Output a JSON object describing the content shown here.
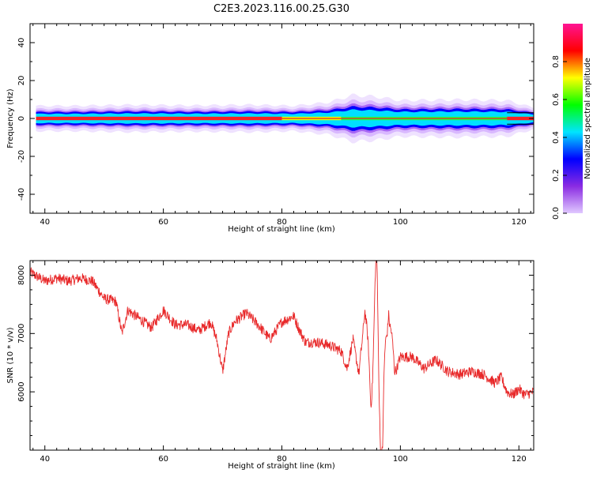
{
  "title": "C2E3.2023.116.00.25.G30",
  "colors": {
    "snr_line": "#e8292a",
    "spectrum_center": "#e8282a",
    "colormap": [
      "#e0c8ff",
      "#8a2be2",
      "#0000ff",
      "#00e5ff",
      "#00ff00",
      "#ffff00",
      "#ff0000",
      "#ff1493"
    ]
  },
  "chart_data": [
    {
      "name": "spectrogram",
      "type": "heatmap",
      "xlabel": "Height of straight line (km)",
      "ylabel": "Frequency (Hz)",
      "xlim": [
        37.5,
        122.5
      ],
      "ylim": [
        -50,
        50
      ],
      "xticks": [
        40,
        60,
        80,
        100,
        120
      ],
      "yticks": [
        40,
        20,
        0,
        -20,
        -40
      ],
      "colorbar": {
        "label": "Normalized spectral amplitude",
        "range": [
          0,
          1
        ],
        "ticks": [
          "0.0",
          "0.2",
          "0.4",
          "0.6",
          "0.8"
        ],
        "colormap": "gist_rainbow"
      },
      "ridge": {
        "center_frequency_hz": 0,
        "halfwidth_hz": [
          [
            38.5,
            3.5
          ],
          [
            45,
            3.5
          ],
          [
            55,
            3.8
          ],
          [
            65,
            3.6
          ],
          [
            75,
            3.8
          ],
          [
            82,
            3.5
          ],
          [
            88,
            4.5
          ],
          [
            92,
            6.5
          ],
          [
            96,
            6.0
          ],
          [
            100,
            5.0
          ],
          [
            110,
            5.2
          ],
          [
            118,
            5.0
          ],
          [
            122.5,
            3.0
          ]
        ],
        "core_color_segments": [
          [
            38.5,
            80,
            "red"
          ],
          [
            80,
            90,
            "yellow"
          ],
          [
            90,
            100,
            "green"
          ],
          [
            100,
            118,
            "green"
          ],
          [
            118,
            122.5,
            "red"
          ]
        ]
      }
    },
    {
      "name": "snr",
      "type": "line",
      "xlabel": "Height of straight line (km)",
      "ylabel": "SNR (10 * v/v)",
      "xlim": [
        37.5,
        122.5
      ],
      "ylim": [
        5000,
        8250
      ],
      "xticks": [
        40,
        60,
        80,
        100,
        120
      ],
      "yticks": [
        6000,
        7000,
        8000
      ],
      "series": [
        {
          "x": [
            37.5,
            40,
            42,
            44,
            46,
            48,
            50,
            52,
            53,
            54,
            56,
            58,
            60,
            62,
            64,
            66,
            68,
            69,
            70,
            71,
            72,
            74,
            76,
            78,
            80,
            82,
            83,
            84,
            86,
            88,
            90,
            91,
            92,
            93,
            94,
            95,
            96,
            97,
            98,
            99,
            100,
            102,
            104,
            106,
            108,
            110,
            112,
            114,
            116,
            117,
            118,
            119,
            120,
            121,
            122.5
          ],
          "y": [
            8050,
            7900,
            7950,
            7900,
            7950,
            7900,
            7600,
            7550,
            7000,
            7400,
            7250,
            7100,
            7400,
            7150,
            7150,
            7050,
            7200,
            6900,
            6350,
            7000,
            7200,
            7350,
            7150,
            6900,
            7200,
            7300,
            7050,
            6850,
            6850,
            6800,
            6700,
            6400,
            6900,
            6300,
            7400,
            6100,
            7700,
            5000,
            7700,
            6300,
            6600,
            6600,
            6400,
            6550,
            6350,
            6300,
            6350,
            6300,
            6150,
            6250,
            6000,
            5950,
            6050,
            5950,
            6000
          ]
        }
      ]
    }
  ]
}
